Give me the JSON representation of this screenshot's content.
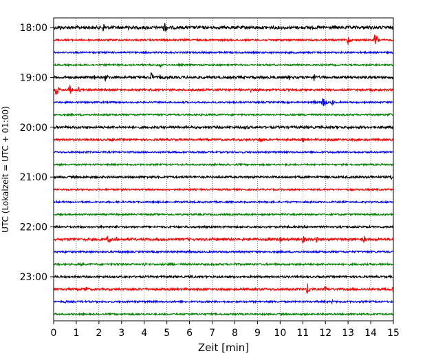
{
  "chart_data": {
    "type": "line",
    "chart_kind": "helicorder",
    "xlabel": "Zeit  [min]",
    "ylabel": "UTC (Lokalzeit = UTC + 01:00)",
    "xlim": [
      0,
      15
    ],
    "x_ticks": [
      "0",
      "1",
      "2",
      "3",
      "4",
      "5",
      "6",
      "7",
      "8",
      "9",
      "10",
      "11",
      "12",
      "13",
      "14",
      "15"
    ],
    "y_ticks": [
      "18:00",
      "19:00",
      "20:00",
      "21:00",
      "22:00",
      "23:00"
    ],
    "trace_minutes": 15,
    "grid": {
      "vertical": "dotted",
      "horizontal": false
    },
    "colors": [
      "#000000",
      "#ff0000",
      "#0000ff",
      "#008000"
    ],
    "traces": [
      {
        "start": "18:00",
        "color": "#000000",
        "noise": 2.2,
        "events": [
          [
            0.3,
            4
          ],
          [
            2.2,
            8
          ],
          [
            3.3,
            7
          ],
          [
            4.9,
            11
          ],
          [
            8.0,
            3
          ]
        ]
      },
      {
        "start": "18:15",
        "color": "#ff0000",
        "noise": 1.3,
        "events": [
          [
            13.0,
            8
          ],
          [
            14.2,
            14
          ]
        ]
      },
      {
        "start": "18:30",
        "color": "#0000ff",
        "noise": 1.2,
        "events": [
          [
            2.0,
            2
          ]
        ]
      },
      {
        "start": "18:45",
        "color": "#008000",
        "noise": 1.2,
        "events": [
          [
            4.7,
            4
          ]
        ]
      },
      {
        "start": "19:00",
        "color": "#000000",
        "noise": 1.8,
        "events": [
          [
            1.8,
            4
          ],
          [
            2.3,
            7
          ],
          [
            4.3,
            9
          ],
          [
            4.7,
            4
          ],
          [
            10.4,
            4
          ],
          [
            11.5,
            7
          ]
        ]
      },
      {
        "start": "19:15",
        "color": "#ff0000",
        "noise": 1.5,
        "events": [
          [
            0.1,
            11
          ],
          [
            0.7,
            9
          ],
          [
            1.1,
            5
          ],
          [
            8.7,
            3
          ]
        ]
      },
      {
        "start": "19:30",
        "color": "#0000ff",
        "noise": 1.2,
        "events": [
          [
            11.5,
            4
          ],
          [
            11.9,
            13
          ],
          [
            12.3,
            5
          ]
        ]
      },
      {
        "start": "19:45",
        "color": "#008000",
        "noise": 1.2,
        "events": [
          [
            14.8,
            4
          ]
        ]
      },
      {
        "start": "20:00",
        "color": "#000000",
        "noise": 1.7,
        "events": [
          [
            8.5,
            5
          ],
          [
            12.5,
            4
          ],
          [
            13.0,
            3
          ]
        ]
      },
      {
        "start": "20:15",
        "color": "#ff0000",
        "noise": 1.5,
        "events": [
          [
            2.6,
            4
          ],
          [
            9.1,
            6
          ],
          [
            11.0,
            4
          ],
          [
            12.3,
            3
          ]
        ]
      },
      {
        "start": "20:30",
        "color": "#0000ff",
        "noise": 1.2,
        "events": []
      },
      {
        "start": "20:45",
        "color": "#008000",
        "noise": 1.2,
        "events": []
      },
      {
        "start": "21:00",
        "color": "#000000",
        "noise": 1.5,
        "events": [
          [
            14.9,
            5
          ]
        ]
      },
      {
        "start": "21:15",
        "color": "#ff0000",
        "noise": 1.2,
        "events": []
      },
      {
        "start": "21:30",
        "color": "#0000ff",
        "noise": 1.2,
        "events": []
      },
      {
        "start": "21:45",
        "color": "#008000",
        "noise": 1.2,
        "events": []
      },
      {
        "start": "22:00",
        "color": "#000000",
        "noise": 1.4,
        "events": [
          [
            2.1,
            3
          ],
          [
            2.8,
            3
          ]
        ]
      },
      {
        "start": "22:15",
        "color": "#ff0000",
        "noise": 1.8,
        "events": [
          [
            2.4,
            8
          ],
          [
            2.8,
            5
          ],
          [
            7.0,
            4
          ],
          [
            10.0,
            6
          ],
          [
            11.0,
            7
          ],
          [
            11.6,
            5
          ],
          [
            12.6,
            5
          ],
          [
            13.7,
            6
          ]
        ]
      },
      {
        "start": "22:30",
        "color": "#0000ff",
        "noise": 1.3,
        "events": [
          [
            6.0,
            3
          ],
          [
            12.0,
            2
          ]
        ]
      },
      {
        "start": "22:45",
        "color": "#008000",
        "noise": 1.4,
        "events": [
          [
            1.2,
            3
          ],
          [
            2.8,
            3
          ],
          [
            4.0,
            4
          ],
          [
            5.2,
            4
          ],
          [
            8.0,
            3
          ]
        ]
      },
      {
        "start": "23:00",
        "color": "#000000",
        "noise": 1.4,
        "events": [
          [
            6.1,
            3
          ],
          [
            13.5,
            3
          ]
        ]
      },
      {
        "start": "23:15",
        "color": "#ff0000",
        "noise": 1.6,
        "events": [
          [
            1.4,
            6
          ],
          [
            5.8,
            3
          ],
          [
            9.8,
            3
          ],
          [
            11.2,
            10
          ],
          [
            12.0,
            6
          ],
          [
            15.0,
            6
          ]
        ]
      },
      {
        "start": "23:30",
        "color": "#0000ff",
        "noise": 1.3,
        "events": [
          [
            0.5,
            3
          ],
          [
            12.3,
            3
          ]
        ]
      },
      {
        "start": "23:45",
        "color": "#008000",
        "noise": 1.2,
        "events": []
      }
    ]
  }
}
